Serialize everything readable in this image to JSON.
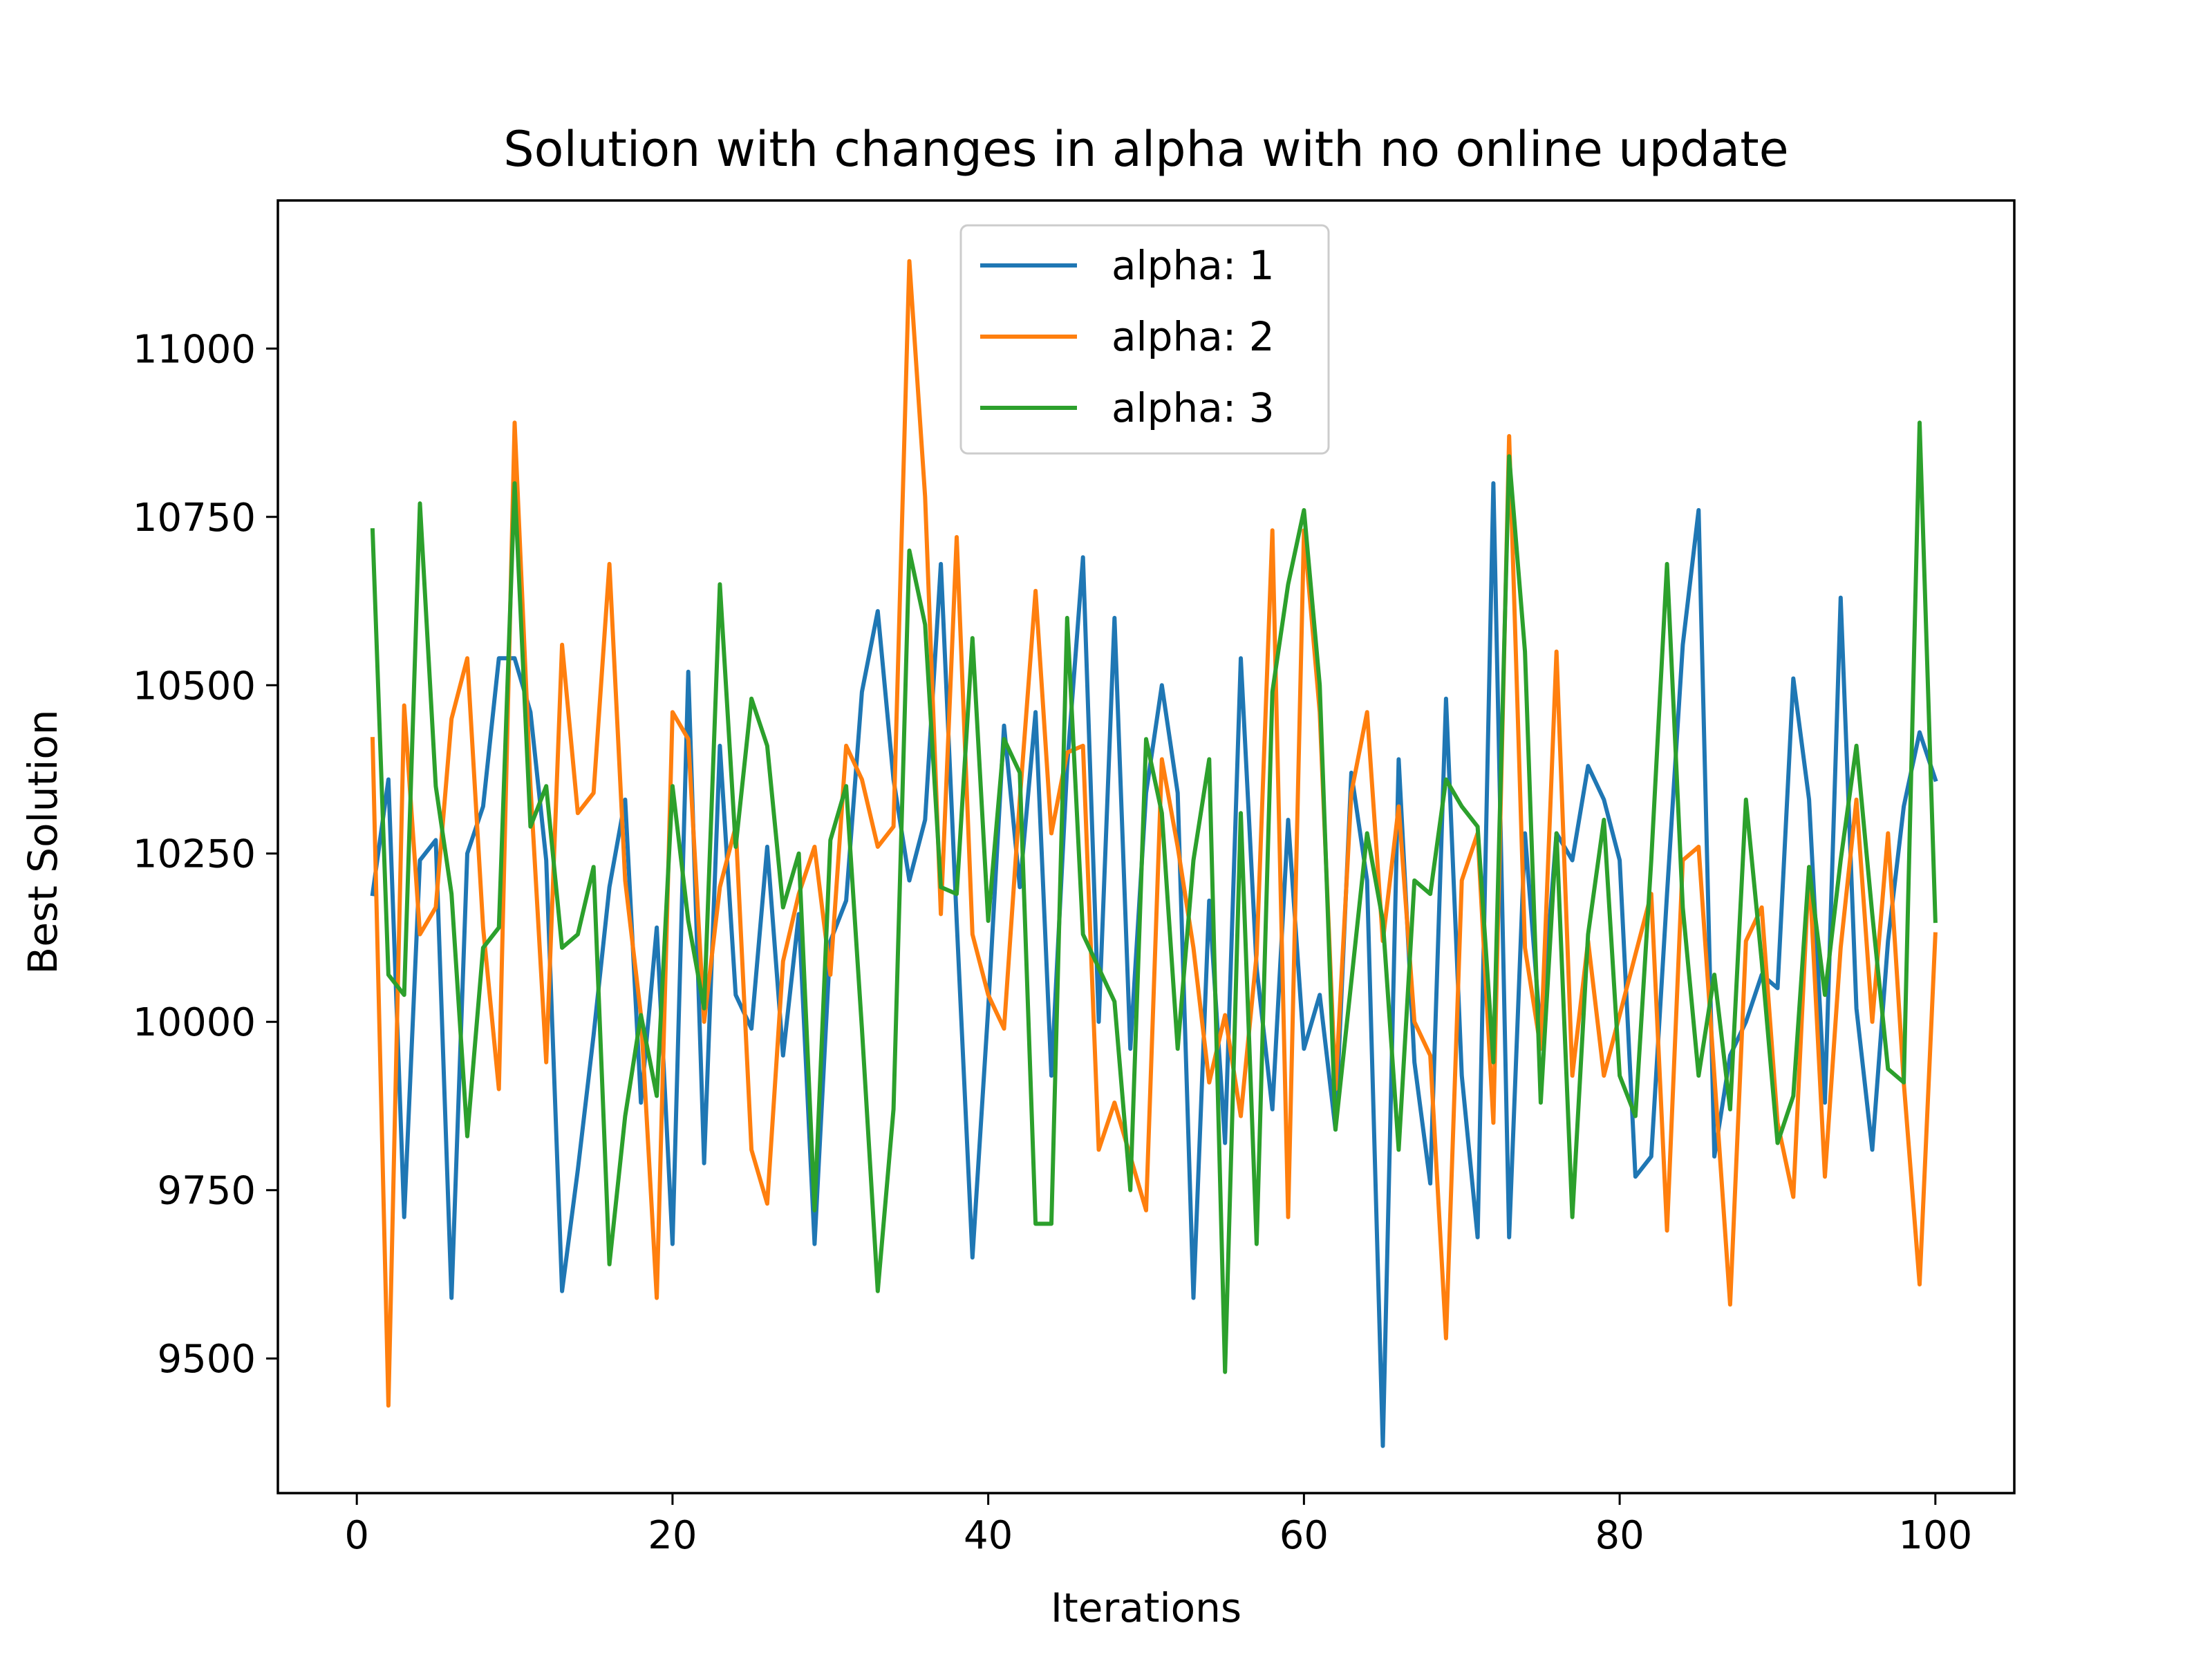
{
  "chart_data": {
    "type": "line",
    "title": "Solution with changes in alpha with no online update",
    "xlabel": "Iterations",
    "ylabel": "Best Solution",
    "xlim": [
      -5,
      105
    ],
    "ylim": [
      9300,
      11220
    ],
    "xticks": [
      0,
      20,
      40,
      60,
      80,
      100
    ],
    "yticks": [
      9500,
      9750,
      10000,
      10250,
      10500,
      10750,
      11000
    ],
    "grid": false,
    "legend_position": "upper-center",
    "x": [
      1,
      2,
      3,
      4,
      5,
      6,
      7,
      8,
      9,
      10,
      11,
      12,
      13,
      14,
      15,
      16,
      17,
      18,
      19,
      20,
      21,
      22,
      23,
      24,
      25,
      26,
      27,
      28,
      29,
      30,
      31,
      32,
      33,
      34,
      35,
      36,
      37,
      38,
      39,
      40,
      41,
      42,
      43,
      44,
      45,
      46,
      47,
      48,
      49,
      50,
      51,
      52,
      53,
      54,
      55,
      56,
      57,
      58,
      59,
      60,
      61,
      62,
      63,
      64,
      65,
      66,
      67,
      68,
      69,
      70,
      71,
      72,
      73,
      74,
      75,
      76,
      77,
      78,
      79,
      80,
      81,
      82,
      83,
      84,
      85,
      86,
      87,
      88,
      89,
      90,
      91,
      92,
      93,
      94,
      95,
      96,
      97,
      98,
      99,
      100
    ],
    "series": [
      {
        "name": "alpha: 1",
        "color": "#1f77b4",
        "values": [
          10190,
          10360,
          9710,
          10240,
          10270,
          9590,
          10250,
          10320,
          10540,
          10540,
          10460,
          10240,
          9600,
          9780,
          9980,
          10200,
          10330,
          9880,
          10140,
          9670,
          10520,
          9790,
          10410,
          10040,
          9990,
          10260,
          9950,
          10160,
          9670,
          10120,
          10180,
          10490,
          10610,
          10360,
          10210,
          10300,
          10680,
          10150,
          9650,
          10020,
          10440,
          10200,
          10460,
          9920,
          10380,
          10690,
          10000,
          10600,
          9960,
          10340,
          10500,
          10340,
          9590,
          10180,
          9820,
          10540,
          10080,
          9870,
          10300,
          9960,
          10040,
          9840,
          10370,
          10210,
          9370,
          10390,
          9940,
          9760,
          10480,
          9920,
          9680,
          10800,
          9680,
          10280,
          9980,
          10280,
          10240,
          10380,
          10330,
          10240,
          9770,
          9800,
          10190,
          10560,
          10760,
          9800,
          9950,
          10000,
          10070,
          10050,
          10510,
          10330,
          9880,
          10630,
          10020,
          9810,
          10120,
          10320,
          10430,
          10360
        ]
      },
      {
        "name": "alpha: 2",
        "color": "#ff7f0e",
        "values": [
          10420,
          9430,
          10470,
          10130,
          10170,
          10450,
          10540,
          10140,
          9900,
          10890,
          10350,
          9940,
          10560,
          10310,
          10340,
          10680,
          10210,
          10010,
          9590,
          10460,
          10420,
          10000,
          10200,
          10290,
          9810,
          9730,
          10090,
          10190,
          10260,
          10070,
          10410,
          10360,
          10260,
          10290,
          11130,
          10780,
          10160,
          10720,
          10130,
          10040,
          9990,
          10330,
          10640,
          10280,
          10400,
          10410,
          9810,
          9880,
          9800,
          9720,
          10390,
          10260,
          10110,
          9910,
          10010,
          9860,
          10100,
          10730,
          9710,
          10730,
          10460,
          9900,
          10340,
          10460,
          10120,
          10320,
          10000,
          9950,
          9530,
          10210,
          10280,
          9850,
          10870,
          10110,
          9960,
          10550,
          9920,
          10120,
          9920,
          10010,
          10100,
          10190,
          9690,
          10240,
          10260,
          9920,
          9580,
          10120,
          10170,
          9850,
          9740,
          10230,
          9770,
          10110,
          10330,
          10000,
          10280,
          9910,
          9610,
          10130
        ]
      },
      {
        "name": "alpha: 3",
        "color": "#2ca02c",
        "values": [
          10730,
          10070,
          10040,
          10770,
          10350,
          10190,
          9830,
          10110,
          10140,
          10800,
          10290,
          10350,
          10110,
          10130,
          10230,
          9640,
          9860,
          10010,
          9890,
          10350,
          10150,
          10020,
          10650,
          10260,
          10480,
          10410,
          10170,
          10250,
          9720,
          10270,
          10350,
          9990,
          9600,
          9870,
          10700,
          10590,
          10200,
          10190,
          10570,
          10150,
          10420,
          10370,
          9700,
          9700,
          10600,
          10130,
          10080,
          10030,
          9750,
          10420,
          10310,
          9960,
          10240,
          10390,
          9480,
          10310,
          9670,
          10490,
          10650,
          10760,
          10500,
          9840,
          10060,
          10280,
          10150,
          9810,
          10210,
          10190,
          10360,
          10320,
          10290,
          9940,
          10840,
          10550,
          9880,
          10280,
          9710,
          10130,
          10300,
          9920,
          9860,
          10240,
          10680,
          10170,
          9920,
          10070,
          9870,
          10330,
          10090,
          9820,
          9890,
          10230,
          10040,
          10240,
          10410,
          10160,
          9930,
          9910,
          10890,
          10150
        ]
      }
    ]
  }
}
